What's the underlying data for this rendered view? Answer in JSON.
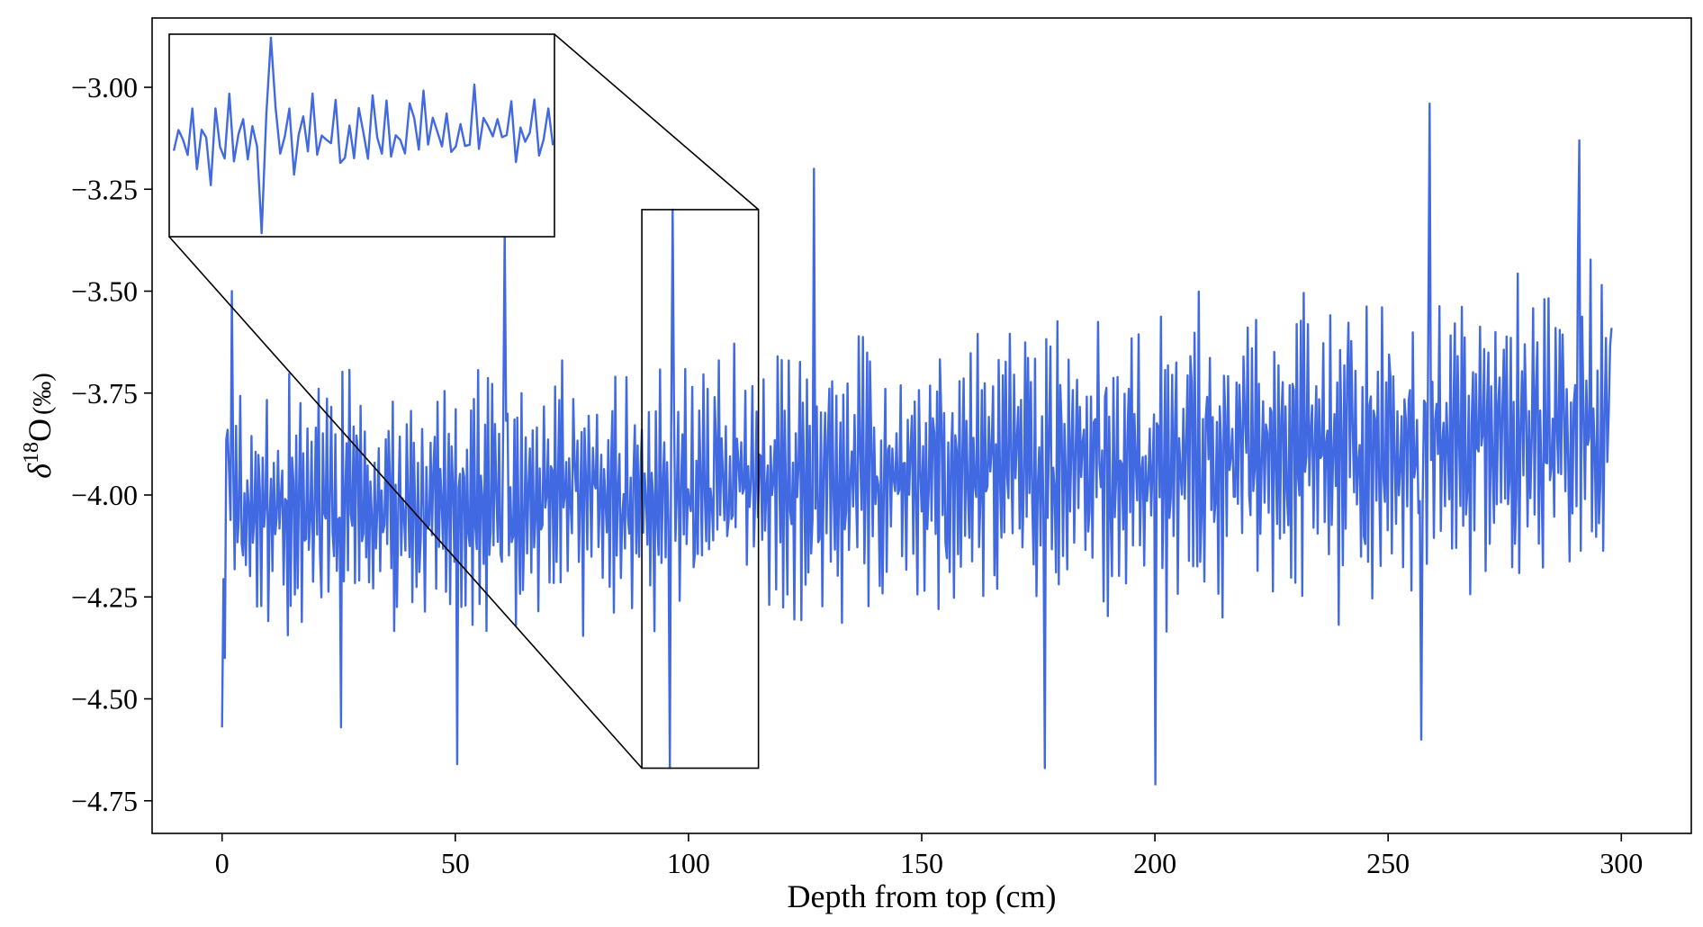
{
  "chart_data": {
    "type": "line",
    "title": "",
    "xlabel": "Depth from top (cm)",
    "ylabel_symbol": "δ",
    "ylabel_superscript": "18",
    "ylabel_main": "O",
    "ylabel_unit": "(‰)",
    "xlim": [
      -15,
      315
    ],
    "ylim": [
      -4.83,
      -2.83
    ],
    "x_ticks": [
      0,
      50,
      100,
      150,
      200,
      250,
      300
    ],
    "y_ticks": [
      -3.0,
      -3.25,
      -3.5,
      -3.75,
      -4.0,
      -4.25,
      -4.5,
      -4.75
    ],
    "x_tick_labels": [
      "0",
      "50",
      "100",
      "150",
      "200",
      "250",
      "300"
    ],
    "y_tick_labels": [
      "−3.00",
      "−3.25",
      "−3.50",
      "−3.75",
      "−4.00",
      "−4.25",
      "−4.50",
      "−4.75"
    ],
    "series": [
      {
        "color": "#4169e1",
        "x_start": 0,
        "x_end": 298,
        "seed": 7,
        "trend_start": -4.05,
        "trend_end": -3.85,
        "amplitude_start": 0.22,
        "amplitude_end": 0.3,
        "extremes": [
          {
            "x": 0,
            "y": -4.57
          },
          {
            "x": 0.5,
            "y": -4.4
          },
          {
            "x": 1.2,
            "y": -3.84
          },
          {
            "x": 2.1,
            "y": -3.5
          },
          {
            "x": 25.5,
            "y": -4.57
          },
          {
            "x": 50.5,
            "y": -4.66
          },
          {
            "x": 60.5,
            "y": -3.35
          },
          {
            "x": 96.5,
            "y": -3.3
          },
          {
            "x": 96.0,
            "y": -4.67
          },
          {
            "x": 127.0,
            "y": -3.2
          },
          {
            "x": 176.5,
            "y": -4.67
          },
          {
            "x": 200.0,
            "y": -4.71
          },
          {
            "x": 257.0,
            "y": -4.6
          },
          {
            "x": 259.0,
            "y": -3.04
          },
          {
            "x": 291.0,
            "y": -3.13
          },
          {
            "x": 298,
            "y": -3.59
          }
        ]
      }
    ],
    "zoom_region": {
      "x_range": [
        90,
        115
      ],
      "y_range": [
        -4.67,
        -3.3
      ]
    },
    "inset": {
      "x_range": [
        90,
        115
      ],
      "y_range": [
        -4.67,
        -3.3
      ]
    }
  }
}
